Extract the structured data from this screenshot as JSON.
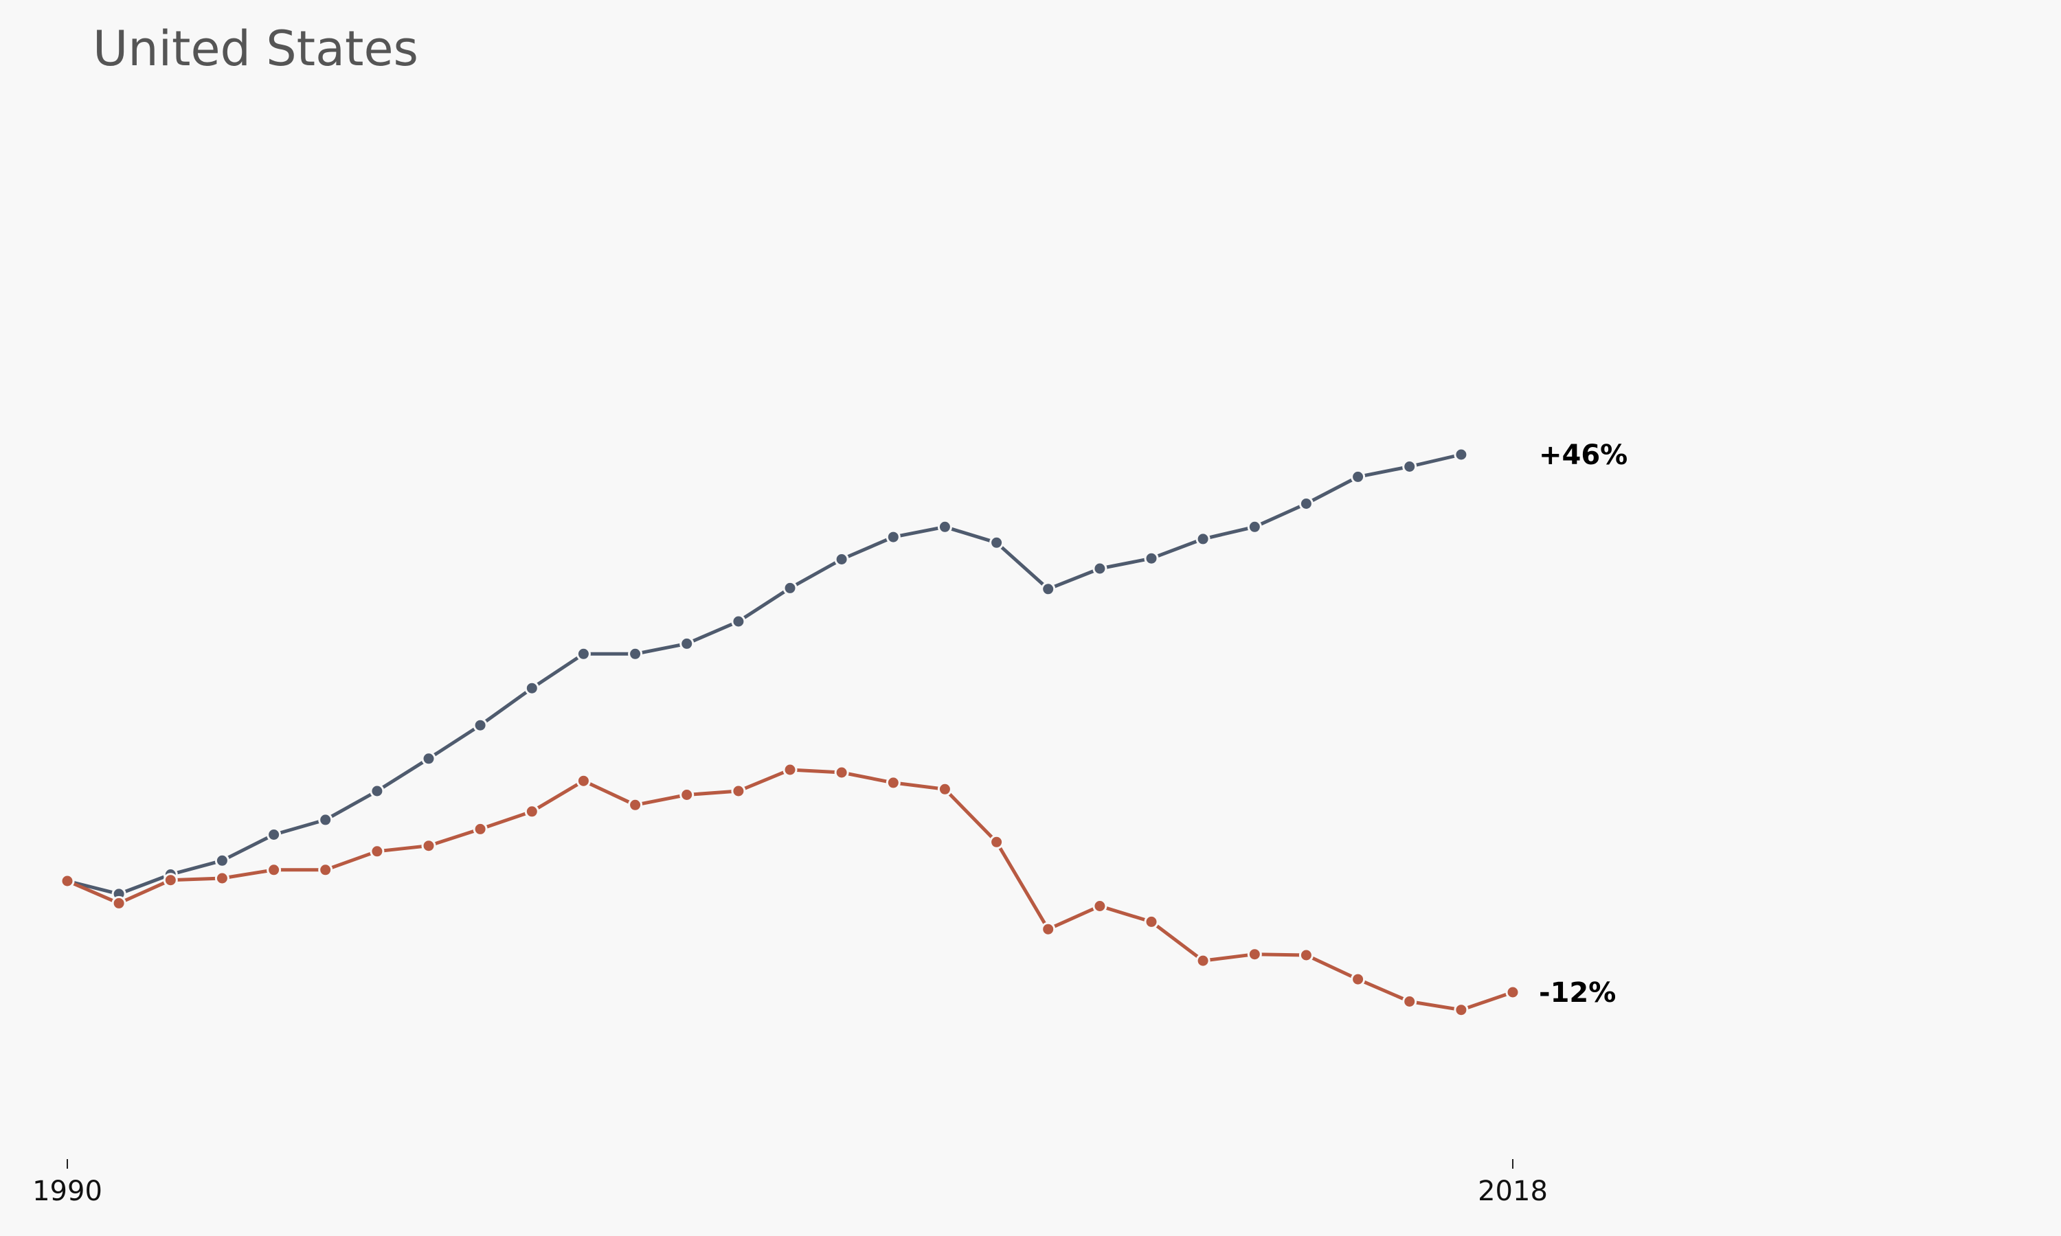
{
  "title": "United States",
  "chart_data": {
    "type": "line",
    "title": "United States",
    "xlabel": "",
    "ylabel": "",
    "x_ticks": [
      1990,
      2018
    ],
    "x_tick_labels": [
      "1990",
      "2018"
    ],
    "xlim": [
      1990,
      2018
    ],
    "ylim": [
      -18,
      52
    ],
    "y_axis_shown": false,
    "grid": false,
    "legend": "none",
    "series": [
      {
        "color": "#4f5b6e",
        "end_label": "+46%",
        "x": [
          1990,
          1991,
          1992,
          1993,
          1994,
          1995,
          1996,
          1997,
          1998,
          1999,
          2000,
          2001,
          2002,
          2003,
          2004,
          2005,
          2006,
          2007,
          2008,
          2009,
          2010,
          2011,
          2012,
          2013,
          2014,
          2015,
          2016,
          2017
        ],
        "values": [
          0,
          -1.4,
          0.7,
          2.2,
          5.0,
          6.6,
          9.7,
          13.2,
          16.8,
          20.8,
          24.5,
          24.5,
          25.6,
          28.0,
          31.6,
          34.7,
          37.1,
          38.2,
          36.5,
          31.5,
          33.7,
          34.8,
          36.9,
          38.2,
          40.7,
          43.6,
          44.7,
          46
        ]
      },
      {
        "color": "#b85a42",
        "end_label": "-12%",
        "x": [
          1990,
          1991,
          1992,
          1993,
          1994,
          1995,
          1996,
          1997,
          1998,
          1999,
          2000,
          2001,
          2002,
          2003,
          2004,
          2005,
          2006,
          2007,
          2008,
          2009,
          2010,
          2011,
          2012,
          2013,
          2014,
          2015,
          2016,
          2017,
          2018
        ],
        "values": [
          0,
          -2.4,
          0.1,
          0.3,
          1.2,
          1.2,
          3.2,
          3.8,
          5.6,
          7.5,
          10.8,
          8.2,
          9.3,
          9.7,
          12.0,
          11.7,
          10.6,
          9.9,
          4.2,
          -5.2,
          -2.7,
          -4.4,
          -8.6,
          -7.9,
          -8.0,
          -10.6,
          -13.0,
          -13.9,
          -12
        ]
      }
    ]
  }
}
